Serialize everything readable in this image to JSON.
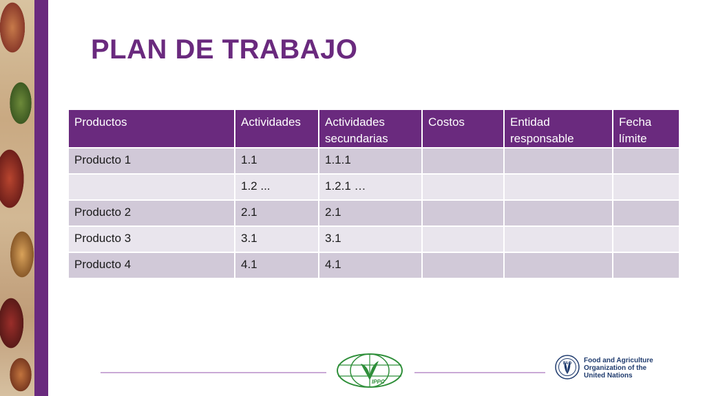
{
  "slide": {
    "title": "PLAN DE TRABAJO"
  },
  "table": {
    "headers": [
      "Productos",
      "Actividades",
      "Actividades secundarias",
      "Costos",
      "Entidad responsable",
      "Fecha límite"
    ],
    "rows": [
      [
        "Producto 1",
        "1.1",
        "1.1.1",
        "",
        "",
        ""
      ],
      [
        "",
        "1.2 ...",
        "1.2.1 …",
        "",
        "",
        ""
      ],
      [
        "Producto 2",
        "2.1",
        "2.1",
        "",
        "",
        ""
      ],
      [
        "Producto 3",
        "3.1",
        "3.1",
        "",
        "",
        ""
      ],
      [
        "Producto 4",
        "4.1",
        "4.1",
        "",
        "",
        ""
      ]
    ]
  },
  "footer": {
    "ippc_logo_text": "IPPC",
    "fao_logo_text": "FAO",
    "fao_name_lines": [
      "Food and Agriculture",
      "Organization of the",
      "United Nations"
    ]
  },
  "colors": {
    "accent": "#6a2a7e",
    "row_dark": "#d1c9d8",
    "row_light": "#e9e5ed",
    "ippc_green": "#2f8f3a",
    "fao_blue": "#1f3b6e"
  }
}
